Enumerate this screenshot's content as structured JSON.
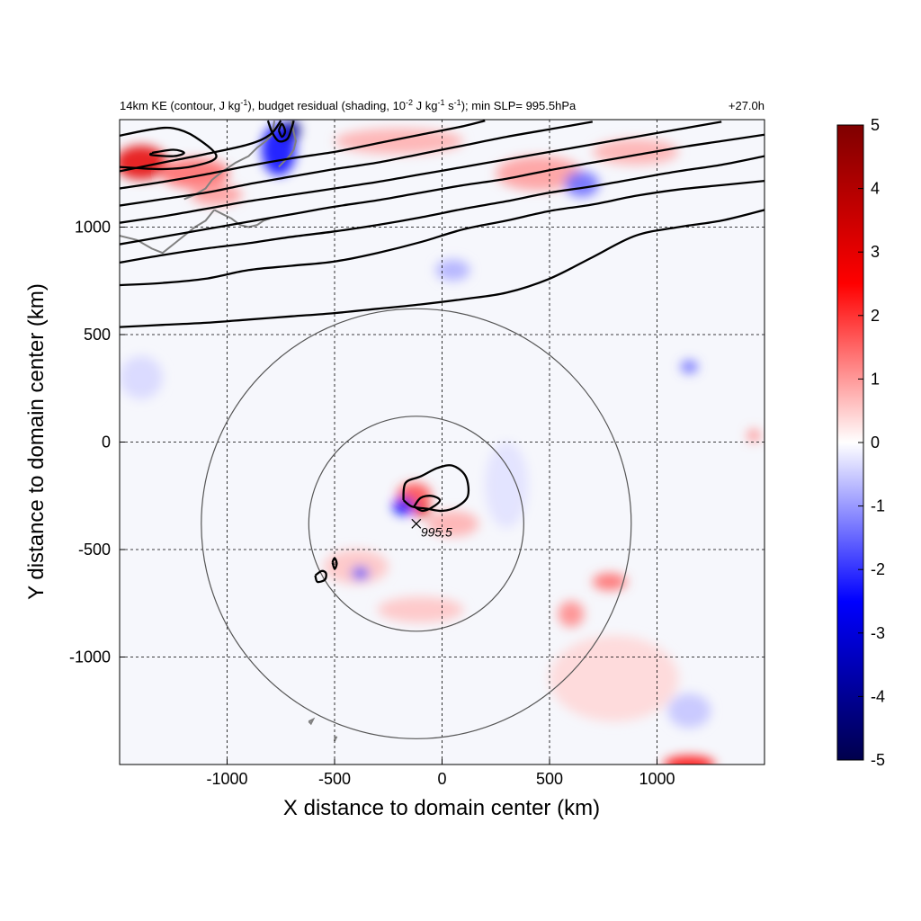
{
  "chart_data": {
    "type": "contour",
    "title_parts": {
      "p1": "14km KE (contour, J kg",
      "p1_sup": "-1",
      "p2": "), budget residual (shading, 10",
      "p2_sup": "-2",
      "p3": " J kg",
      "p3_sup": "-1",
      "p4": " s",
      "p4_sup": "-1",
      "p5": "); min SLP= 995.5hPa"
    },
    "time_label": "+27.0h",
    "xlabel": "X distance to domain center (km)",
    "ylabel": "Y distance to domain center (km)",
    "xlim": [
      -1500,
      1500
    ],
    "ylim": [
      -1500,
      1500
    ],
    "xticks": [
      -1000,
      -500,
      0,
      500,
      1000
    ],
    "yticks": [
      -1000,
      -500,
      0,
      500,
      1000
    ],
    "xtick_labels": [
      "-1000",
      "-500",
      "0",
      "500",
      "1000"
    ],
    "ytick_labels": [
      "-1000",
      "-500",
      "0",
      "500",
      "1000"
    ],
    "grid": true,
    "colorbar": {
      "min": -5,
      "max": 5,
      "ticks": [
        5,
        4,
        3,
        2,
        1,
        0,
        -1,
        -2,
        -3,
        -4,
        -5
      ],
      "tick_labels": [
        "5",
        "4",
        "3",
        "2",
        "1",
        "0",
        "-1",
        "-2",
        "-3",
        "-4",
        "-5"
      ],
      "colors": [
        "#00004c",
        "#0000ff",
        "#ffffff",
        "#ff0000",
        "#7f0000"
      ]
    },
    "storm": {
      "center": [
        -120,
        -380
      ],
      "min_slp_label": "995.5",
      "circle_radii": [
        500,
        1000
      ]
    },
    "ke_contours": [
      [
        [
          -1500,
          535
        ],
        [
          -1300,
          545
        ],
        [
          -1100,
          555
        ],
        [
          -900,
          570
        ],
        [
          -700,
          585
        ],
        [
          -500,
          600
        ],
        [
          -300,
          620
        ],
        [
          -100,
          640
        ],
        [
          100,
          665
        ],
        [
          300,
          695
        ],
        [
          500,
          760
        ],
        [
          700,
          860
        ],
        [
          900,
          960
        ],
        [
          1100,
          1000
        ],
        [
          1300,
          1030
        ],
        [
          1500,
          1080
        ]
      ],
      [
        [
          -1500,
          730
        ],
        [
          -1300,
          740
        ],
        [
          -1100,
          760
        ],
        [
          -900,
          800
        ],
        [
          -700,
          820
        ],
        [
          -500,
          840
        ],
        [
          -300,
          880
        ],
        [
          -100,
          930
        ],
        [
          100,
          990
        ],
        [
          300,
          1030
        ],
        [
          500,
          1075
        ],
        [
          700,
          1105
        ],
        [
          900,
          1145
        ],
        [
          1100,
          1175
        ],
        [
          1300,
          1195
        ],
        [
          1500,
          1215
        ]
      ],
      [
        [
          -1500,
          835
        ],
        [
          -1300,
          870
        ],
        [
          -1100,
          900
        ],
        [
          -900,
          925
        ],
        [
          -700,
          955
        ],
        [
          -500,
          980
        ],
        [
          -300,
          1010
        ],
        [
          -100,
          1045
        ],
        [
          100,
          1085
        ],
        [
          300,
          1120
        ],
        [
          500,
          1160
        ],
        [
          700,
          1190
        ],
        [
          900,
          1225
        ],
        [
          1100,
          1260
        ],
        [
          1300,
          1290
        ],
        [
          1500,
          1330
        ]
      ],
      [
        [
          -1500,
          920
        ],
        [
          -1300,
          955
        ],
        [
          -1100,
          990
        ],
        [
          -900,
          1025
        ],
        [
          -700,
          1060
        ],
        [
          -500,
          1095
        ],
        [
          -300,
          1125
        ],
        [
          -100,
          1160
        ],
        [
          100,
          1195
        ],
        [
          300,
          1225
        ],
        [
          500,
          1265
        ],
        [
          700,
          1300
        ],
        [
          900,
          1335
        ],
        [
          1100,
          1370
        ],
        [
          1300,
          1400
        ],
        [
          1500,
          1430
        ]
      ],
      [
        [
          -1500,
          1020
        ],
        [
          -1300,
          1050
        ],
        [
          -1100,
          1085
        ],
        [
          -900,
          1120
        ],
        [
          -700,
          1150
        ],
        [
          -500,
          1180
        ],
        [
          -300,
          1210
        ],
        [
          -100,
          1245
        ],
        [
          100,
          1280
        ],
        [
          300,
          1315
        ],
        [
          500,
          1350
        ],
        [
          700,
          1385
        ],
        [
          900,
          1420
        ],
        [
          1100,
          1455
        ],
        [
          1300,
          1490
        ]
      ],
      [
        [
          -1500,
          1100
        ],
        [
          -1300,
          1130
        ],
        [
          -1100,
          1160
        ],
        [
          -900,
          1200
        ],
        [
          -700,
          1235
        ],
        [
          -500,
          1270
        ],
        [
          -300,
          1300
        ],
        [
          -100,
          1340
        ],
        [
          100,
          1380
        ],
        [
          300,
          1420
        ],
        [
          500,
          1455
        ],
        [
          700,
          1490
        ]
      ],
      [
        [
          -1500,
          1180
        ],
        [
          -1300,
          1210
        ],
        [
          -1100,
          1245
        ],
        [
          -900,
          1285
        ],
        [
          -700,
          1320
        ],
        [
          -500,
          1350
        ],
        [
          -300,
          1390
        ],
        [
          -100,
          1430
        ],
        [
          100,
          1470
        ],
        [
          200,
          1495
        ]
      ],
      [
        [
          -1500,
          1260
        ],
        [
          -1300,
          1300
        ],
        [
          -1100,
          1340
        ],
        [
          -900,
          1385
        ],
        [
          -800,
          1430
        ],
        [
          -750,
          1495
        ]
      ],
      [
        [
          -1500,
          1425
        ],
        [
          -1350,
          1455
        ],
        [
          -1250,
          1460
        ],
        [
          -1150,
          1420
        ],
        [
          -1050,
          1330
        ],
        [
          -1150,
          1285
        ],
        [
          -1300,
          1270
        ],
        [
          -1500,
          1280
        ]
      ],
      [
        [
          -1350,
          1345
        ],
        [
          -1250,
          1360
        ],
        [
          -1200,
          1345
        ],
        [
          -1250,
          1330
        ],
        [
          -1350,
          1335
        ],
        [
          -1350,
          1345
        ]
      ],
      [
        [
          -810,
          1495
        ],
        [
          -790,
          1440
        ],
        [
          -760,
          1400
        ],
        [
          -720,
          1410
        ],
        [
          -700,
          1460
        ],
        [
          -690,
          1495
        ]
      ],
      [
        [
          -760,
          1450
        ],
        [
          -745,
          1420
        ],
        [
          -730,
          1445
        ],
        [
          -745,
          1480
        ],
        [
          -760,
          1450
        ]
      ],
      [
        [
          -180,
          -270
        ],
        [
          -170,
          -190
        ],
        [
          -100,
          -160
        ],
        [
          -20,
          -120
        ],
        [
          50,
          -110
        ],
        [
          110,
          -160
        ],
        [
          120,
          -250
        ],
        [
          70,
          -300
        ],
        [
          0,
          -320
        ],
        [
          -70,
          -310
        ],
        [
          -140,
          -300
        ],
        [
          -180,
          -270
        ]
      ],
      [
        [
          -130,
          -300
        ],
        [
          -100,
          -260
        ],
        [
          -50,
          -250
        ],
        [
          -10,
          -270
        ],
        [
          -40,
          -300
        ],
        [
          -90,
          -320
        ],
        [
          -130,
          -300
        ]
      ],
      [
        [
          -590,
          -620
        ],
        [
          -560,
          -600
        ],
        [
          -540,
          -610
        ],
        [
          -545,
          -640
        ],
        [
          -580,
          -650
        ],
        [
          -590,
          -620
        ]
      ],
      [
        [
          -510,
          -560
        ],
        [
          -500,
          -540
        ],
        [
          -490,
          -565
        ],
        [
          -500,
          -590
        ],
        [
          -510,
          -560
        ]
      ]
    ],
    "coastlines": [
      [
        [
          -1500,
          960
        ],
        [
          -1420,
          940
        ],
        [
          -1350,
          900
        ],
        [
          -1300,
          880
        ],
        [
          -1250,
          920
        ],
        [
          -1200,
          960
        ],
        [
          -1150,
          1000
        ],
        [
          -1100,
          1030
        ],
        [
          -1060,
          1080
        ]
      ],
      [
        [
          -1060,
          1080
        ],
        [
          -1020,
          1060
        ],
        [
          -980,
          1040
        ],
        [
          -940,
          1010
        ],
        [
          -900,
          1000
        ],
        [
          -860,
          1010
        ],
        [
          -830,
          1030
        ],
        [
          -800,
          1040
        ]
      ],
      [
        [
          -1200,
          1130
        ],
        [
          -1150,
          1150
        ],
        [
          -1100,
          1180
        ],
        [
          -1070,
          1220
        ],
        [
          -1020,
          1260
        ],
        [
          -960,
          1300
        ],
        [
          -900,
          1330
        ],
        [
          -860,
          1370
        ],
        [
          -820,
          1400
        ],
        [
          -790,
          1430
        ],
        [
          -780,
          1495
        ]
      ],
      [
        [
          -760,
          1280
        ],
        [
          -740,
          1300
        ],
        [
          -710,
          1330
        ],
        [
          -690,
          1360
        ],
        [
          -680,
          1400
        ],
        [
          -690,
          1440
        ],
        [
          -700,
          1495
        ]
      ],
      [
        [
          -620,
          -1300
        ],
        [
          -600,
          -1290
        ],
        [
          -610,
          -1310
        ],
        [
          -620,
          -1300
        ]
      ],
      [
        [
          -500,
          -1380
        ],
        [
          -490,
          -1370
        ],
        [
          -500,
          -1390
        ],
        [
          -500,
          -1380
        ]
      ]
    ],
    "shading_blobs": [
      {
        "x": -1400,
        "y": 1300,
        "rx": 120,
        "ry": 80,
        "v": 3.0
      },
      {
        "x": -1150,
        "y": 1250,
        "rx": 160,
        "ry": 70,
        "v": 1.5
      },
      {
        "x": -1050,
        "y": 1150,
        "rx": 120,
        "ry": 50,
        "v": 1.0
      },
      {
        "x": -760,
        "y": 1360,
        "rx": 80,
        "ry": 120,
        "v": -2.5
      },
      {
        "x": -700,
        "y": 1450,
        "rx": 40,
        "ry": 50,
        "v": -4.0
      },
      {
        "x": -200,
        "y": 1400,
        "rx": 300,
        "ry": 60,
        "v": 0.8
      },
      {
        "x": 450,
        "y": 1250,
        "rx": 200,
        "ry": 80,
        "v": 1.0
      },
      {
        "x": 650,
        "y": 1200,
        "rx": 80,
        "ry": 60,
        "v": -1.5
      },
      {
        "x": 900,
        "y": 1350,
        "rx": 200,
        "ry": 60,
        "v": 0.8
      },
      {
        "x": 50,
        "y": 800,
        "rx": 80,
        "ry": 50,
        "v": -0.8
      },
      {
        "x": -130,
        "y": -250,
        "rx": 80,
        "ry": 60,
        "v": 1.8
      },
      {
        "x": -180,
        "y": -300,
        "rx": 50,
        "ry": 40,
        "v": -2.5
      },
      {
        "x": -90,
        "y": -320,
        "rx": 40,
        "ry": 30,
        "v": 3.0
      },
      {
        "x": 50,
        "y": -380,
        "rx": 120,
        "ry": 60,
        "v": 0.8
      },
      {
        "x": -400,
        "y": -580,
        "rx": 150,
        "ry": 80,
        "v": 0.6
      },
      {
        "x": -380,
        "y": -610,
        "rx": 40,
        "ry": 30,
        "v": -1.8
      },
      {
        "x": -100,
        "y": -780,
        "rx": 200,
        "ry": 60,
        "v": 0.6
      },
      {
        "x": 780,
        "y": -650,
        "rx": 80,
        "ry": 40,
        "v": 1.5
      },
      {
        "x": 600,
        "y": -800,
        "rx": 60,
        "ry": 60,
        "v": 1.2
      },
      {
        "x": 800,
        "y": -1100,
        "rx": 300,
        "ry": 200,
        "v": 0.4
      },
      {
        "x": 1150,
        "y": -1500,
        "rx": 120,
        "ry": 40,
        "v": 2.5
      },
      {
        "x": 1150,
        "y": -1250,
        "rx": 100,
        "ry": 80,
        "v": -0.6
      },
      {
        "x": 1450,
        "y": 30,
        "rx": 30,
        "ry": 30,
        "v": 1.2
      },
      {
        "x": 1150,
        "y": 350,
        "rx": 40,
        "ry": 30,
        "v": -1.5
      },
      {
        "x": -1400,
        "y": 300,
        "rx": 100,
        "ry": 100,
        "v": -0.4
      },
      {
        "x": 300,
        "y": -200,
        "rx": 100,
        "ry": 200,
        "v": -0.3
      }
    ]
  }
}
